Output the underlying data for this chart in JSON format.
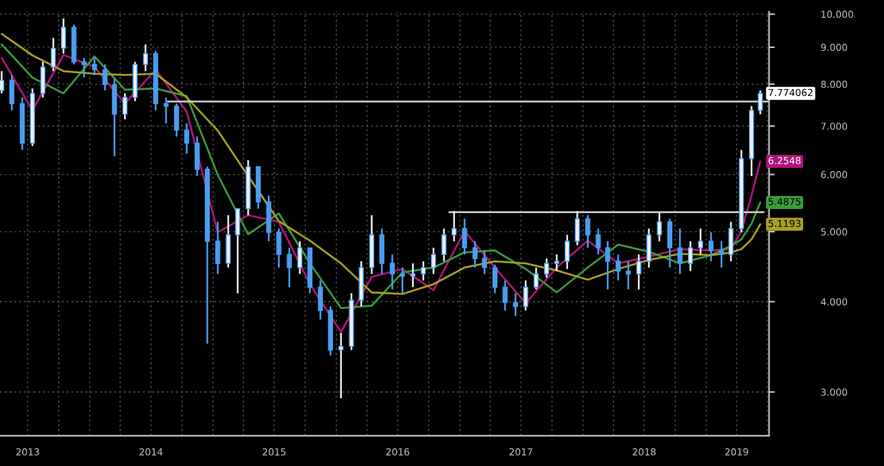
{
  "chart_data": {
    "type": "candlestick",
    "log": "y",
    "grid": true,
    "tick_labels": "xy",
    "xlim": [
      "2013-04-10",
      "2019-07-06"
    ],
    "ylim": [
      2.61,
      10.08
    ],
    "yticks": [
      {
        "value": 3,
        "label": "3.000"
      },
      {
        "value": 4,
        "label": "4.000"
      },
      {
        "value": 5,
        "label": "5.000"
      },
      {
        "value": 6,
        "label": "6.000"
      },
      {
        "value": 7,
        "label": "7.000"
      },
      {
        "value": 8,
        "label": "8.000"
      },
      {
        "value": 9,
        "label": "9.000"
      },
      {
        "value": 10,
        "label": "10.000"
      }
    ],
    "xticks": [
      {
        "value": "2013-07-01",
        "label": "2013"
      },
      {
        "value": "2013-10-01",
        "label": null
      },
      {
        "value": "2014-01-01",
        "label": null
      },
      {
        "value": "2014-04-01",
        "label": null
      },
      {
        "value": "2014-07-01",
        "label": "2014"
      },
      {
        "value": "2014-10-01",
        "label": null
      },
      {
        "value": "2015-01-01",
        "label": null
      },
      {
        "value": "2015-04-01",
        "label": null
      },
      {
        "value": "2015-07-01",
        "label": "2015"
      },
      {
        "value": "2015-10-01",
        "label": null
      },
      {
        "value": "2016-01-01",
        "label": null
      },
      {
        "value": "2016-04-01",
        "label": null
      },
      {
        "value": "2016-07-01",
        "label": "2016"
      },
      {
        "value": "2016-10-01",
        "label": null
      },
      {
        "value": "2017-01-01",
        "label": null
      },
      {
        "value": "2017-04-01",
        "label": null
      },
      {
        "value": "2017-07-01",
        "label": "2017"
      },
      {
        "value": "2017-10-01",
        "label": null
      },
      {
        "value": "2018-01-01",
        "label": null
      },
      {
        "value": "2018-04-01",
        "label": null
      },
      {
        "value": "2018-07-01",
        "label": "2018"
      },
      {
        "value": "2018-10-01",
        "label": null
      },
      {
        "value": "2019-01-01",
        "label": null
      },
      {
        "value": "2019-04-01",
        "label": "2019"
      },
      {
        "value": "2019-07-01",
        "label": null
      }
    ],
    "series": [
      {
        "type": "candlestick",
        "color": "#4a9ef0",
        "x": [
          "2013-04-15",
          "2013-05-15",
          "2013-06-15",
          "2013-07-15",
          "2013-08-15",
          "2013-09-15",
          "2013-10-15",
          "2013-11-15",
          "2013-12-15",
          "2014-01-15",
          "2014-02-15",
          "2014-03-15",
          "2014-04-15",
          "2014-05-15",
          "2014-06-15",
          "2014-07-15",
          "2014-08-15",
          "2014-09-15",
          "2014-10-15",
          "2014-11-15",
          "2014-12-15",
          "2015-01-15",
          "2015-02-15",
          "2015-03-15",
          "2015-04-15",
          "2015-05-15",
          "2015-06-15",
          "2015-07-15",
          "2015-08-15",
          "2015-09-15",
          "2015-10-15",
          "2015-11-15",
          "2015-12-15",
          "2016-01-15",
          "2016-02-15",
          "2016-03-15",
          "2016-04-15",
          "2016-05-15",
          "2016-06-15",
          "2016-07-15",
          "2016-08-15",
          "2016-09-15",
          "2016-10-15",
          "2016-11-15",
          "2016-12-15",
          "2017-01-15",
          "2017-02-15",
          "2017-03-15",
          "2017-04-15",
          "2017-05-15",
          "2017-06-15",
          "2017-07-15",
          "2017-08-15",
          "2017-09-15",
          "2017-10-15",
          "2017-11-15",
          "2017-12-15",
          "2018-01-15",
          "2018-02-15",
          "2018-03-15",
          "2018-04-15",
          "2018-05-15",
          "2018-06-15",
          "2018-07-15",
          "2018-08-15",
          "2018-09-15",
          "2018-10-15",
          "2018-11-15",
          "2018-12-15",
          "2019-01-15",
          "2019-02-15",
          "2019-03-15",
          "2019-04-15",
          "2019-05-15",
          "2019-06-10"
        ],
        "ohlc": [
          [
            7.84,
            8.34,
            7.77,
            8.1
          ],
          [
            8.1,
            8.23,
            7.36,
            7.52
          ],
          [
            7.52,
            7.67,
            6.49,
            6.63
          ],
          [
            6.63,
            7.89,
            6.57,
            7.77
          ],
          [
            7.77,
            8.59,
            7.67,
            8.45
          ],
          [
            8.45,
            9.27,
            8.34,
            8.97
          ],
          [
            8.97,
            9.86,
            8.82,
            9.59
          ],
          [
            9.59,
            9.67,
            8.52,
            8.59
          ],
          [
            8.59,
            8.7,
            8.17,
            8.52
          ],
          [
            8.52,
            8.7,
            8.23,
            8.38
          ],
          [
            8.38,
            8.52,
            7.84,
            7.99
          ],
          [
            7.99,
            8.17,
            6.36,
            7.27
          ],
          [
            7.27,
            7.77,
            7.15,
            7.67
          ],
          [
            7.67,
            8.59,
            7.58,
            8.52
          ],
          [
            8.52,
            9.08,
            8.34,
            8.82
          ],
          [
            8.82,
            8.89,
            7.36,
            7.52
          ],
          [
            7.52,
            7.67,
            7.06,
            7.46
          ],
          [
            7.46,
            7.52,
            6.77,
            6.91
          ],
          [
            6.91,
            7.06,
            6.41,
            6.63
          ],
          [
            6.63,
            6.77,
            5.97,
            6.1
          ],
          [
            6.1,
            6.15,
            3.5,
            4.85
          ],
          [
            4.85,
            5.16,
            4.37,
            4.52
          ],
          [
            4.52,
            5.27,
            4.46,
            4.95
          ],
          [
            4.95,
            5.38,
            4.11,
            5.38
          ],
          [
            5.38,
            6.28,
            5.27,
            6.15
          ],
          [
            6.15,
            6.15,
            5.38,
            5.5
          ],
          [
            5.5,
            5.61,
            4.85,
            4.99
          ],
          [
            4.99,
            5.05,
            4.46,
            4.65
          ],
          [
            4.65,
            4.75,
            4.19,
            4.46
          ],
          [
            4.46,
            4.85,
            4.37,
            4.75
          ],
          [
            4.75,
            4.75,
            4.11,
            4.19
          ],
          [
            4.19,
            4.28,
            3.78,
            3.89
          ],
          [
            3.89,
            3.94,
            3.37,
            3.43
          ],
          [
            3.43,
            3.62,
            2.94,
            3.47
          ],
          [
            3.47,
            4.11,
            3.43,
            4.02
          ],
          [
            4.02,
            4.55,
            3.94,
            4.46
          ],
          [
            4.46,
            5.27,
            4.37,
            4.95
          ],
          [
            4.95,
            5.05,
            4.37,
            4.52
          ],
          [
            4.52,
            4.65,
            4.16,
            4.37
          ],
          [
            4.37,
            4.46,
            4.11,
            4.34
          ],
          [
            4.34,
            4.52,
            4.19,
            4.37
          ],
          [
            4.37,
            4.55,
            4.28,
            4.46
          ],
          [
            4.46,
            4.75,
            4.37,
            4.65
          ],
          [
            4.65,
            5.05,
            4.55,
            4.95
          ],
          [
            4.95,
            5.34,
            4.85,
            5.05
          ],
          [
            5.05,
            5.21,
            4.65,
            4.75
          ],
          [
            4.75,
            4.85,
            4.46,
            4.59
          ],
          [
            4.59,
            4.71,
            4.37,
            4.46
          ],
          [
            4.46,
            4.5,
            4.11,
            4.19
          ],
          [
            4.19,
            4.28,
            3.89,
            3.99
          ],
          [
            3.99,
            4.11,
            3.82,
            3.94
          ],
          [
            3.94,
            4.28,
            3.89,
            4.19
          ],
          [
            4.19,
            4.46,
            4.16,
            4.37
          ],
          [
            4.37,
            4.59,
            4.32,
            4.52
          ],
          [
            4.52,
            4.65,
            4.41,
            4.55
          ],
          [
            4.55,
            4.95,
            4.44,
            4.85
          ],
          [
            4.85,
            5.34,
            4.79,
            5.21
          ],
          [
            5.21,
            5.27,
            4.75,
            4.95
          ],
          [
            4.95,
            5.05,
            4.65,
            4.75
          ],
          [
            4.75,
            4.85,
            4.16,
            4.55
          ],
          [
            4.55,
            4.65,
            4.28,
            4.41
          ],
          [
            4.41,
            4.55,
            4.16,
            4.37
          ],
          [
            4.37,
            4.65,
            4.16,
            4.55
          ],
          [
            4.55,
            5.05,
            4.46,
            4.95
          ],
          [
            4.95,
            5.32,
            4.85,
            5.16
          ],
          [
            5.16,
            5.21,
            4.46,
            4.75
          ],
          [
            4.75,
            5.05,
            4.37,
            4.52
          ],
          [
            4.52,
            4.85,
            4.41,
            4.75
          ],
          [
            4.75,
            5.05,
            4.65,
            4.85
          ],
          [
            4.85,
            4.99,
            4.55,
            4.71
          ],
          [
            4.71,
            4.85,
            4.46,
            4.65
          ],
          [
            4.65,
            5.16,
            4.55,
            5.05
          ],
          [
            5.05,
            6.49,
            4.99,
            6.31
          ],
          [
            6.31,
            7.46,
            5.97,
            7.36
          ],
          [
            7.36,
            7.84,
            7.27,
            7.77
          ]
        ]
      },
      {
        "type": "line",
        "color": "#b0157a",
        "x": [
          "2013-04-15",
          "2013-07-15",
          "2013-10-15",
          "2014-01-15",
          "2014-04-15",
          "2014-07-15",
          "2014-10-15",
          "2015-01-15",
          "2015-04-15",
          "2015-07-15",
          "2015-10-15",
          "2016-01-15",
          "2016-04-15",
          "2016-07-15",
          "2016-10-15",
          "2017-01-15",
          "2017-04-15",
          "2017-07-15",
          "2017-10-15",
          "2018-01-15",
          "2018-04-15",
          "2018-07-15",
          "2018-10-15",
          "2019-01-15",
          "2019-03-15",
          "2019-04-15",
          "2019-05-15",
          "2019-06-10"
        ],
        "values": [
          8.7,
          7.36,
          8.78,
          8.45,
          7.52,
          8.38,
          7.33,
          4.99,
          5.27,
          5.16,
          4.23,
          3.63,
          4.33,
          4.44,
          4.15,
          5.01,
          4.46,
          3.98,
          4.46,
          4.86,
          4.52,
          4.62,
          4.73,
          4.71,
          4.73,
          5.01,
          5.61,
          6.2548
        ]
      },
      {
        "type": "line",
        "color": "#3c9a3c",
        "x": [
          "2013-04-15",
          "2013-07-15",
          "2013-10-15",
          "2014-01-15",
          "2014-04-15",
          "2014-07-15",
          "2014-10-15",
          "2015-01-15",
          "2015-04-15",
          "2015-07-15",
          "2015-10-15",
          "2016-01-15",
          "2016-04-15",
          "2016-07-15",
          "2016-10-15",
          "2017-01-15",
          "2017-04-15",
          "2017-07-15",
          "2017-10-15",
          "2018-01-15",
          "2018-04-15",
          "2018-07-15",
          "2018-10-15",
          "2019-01-15",
          "2019-03-15",
          "2019-04-15",
          "2019-05-15",
          "2019-06-10"
        ],
        "values": [
          9.08,
          8.17,
          7.77,
          8.74,
          7.86,
          7.89,
          7.7,
          5.99,
          4.96,
          5.3,
          4.52,
          3.92,
          3.95,
          4.39,
          4.46,
          4.68,
          4.71,
          4.44,
          4.12,
          4.46,
          4.8,
          4.69,
          4.52,
          4.64,
          4.78,
          4.88,
          5.13,
          5.4875
        ]
      },
      {
        "type": "line",
        "color": "#a8a020",
        "x": [
          "2013-04-15",
          "2013-07-15",
          "2013-10-15",
          "2014-01-15",
          "2014-04-15",
          "2014-07-15",
          "2014-10-15",
          "2015-01-15",
          "2015-04-15",
          "2015-07-15",
          "2015-10-15",
          "2016-01-15",
          "2016-04-15",
          "2016-07-15",
          "2016-10-15",
          "2017-01-15",
          "2017-04-15",
          "2017-07-15",
          "2017-10-15",
          "2018-01-15",
          "2018-04-15",
          "2018-07-15",
          "2018-10-15",
          "2019-01-15",
          "2019-03-15",
          "2019-04-15",
          "2019-05-15",
          "2019-06-10"
        ],
        "values": [
          9.39,
          8.77,
          8.34,
          8.27,
          8.24,
          8.27,
          7.67,
          6.9,
          5.97,
          5.17,
          4.86,
          4.52,
          4.12,
          4.1,
          4.23,
          4.46,
          4.55,
          4.52,
          4.42,
          4.29,
          4.44,
          4.57,
          4.66,
          4.64,
          4.68,
          4.73,
          4.88,
          5.1193
        ]
      },
      {
        "type": "line",
        "color": "#c8c8c8",
        "x": [
          "2014-08-20",
          "2019-07-06"
        ],
        "values": [
          7.57,
          7.57
        ]
      },
      {
        "type": "line",
        "color": "#c8c8c8",
        "x": [
          "2016-12-01",
          "2019-06-20"
        ],
        "values": [
          5.32,
          5.32
        ]
      }
    ],
    "annotations": [
      {
        "text": "7.774062",
        "x": "2019-06-10",
        "y": 7.77
      },
      {
        "text": "6.2548",
        "x": "2019-06-10",
        "y": 6.2548
      },
      {
        "text": "5.4875",
        "x": "2019-06-10",
        "y": 5.4875
      },
      {
        "text": "5.1193",
        "x": "2019-06-10",
        "y": 5.1193
      }
    ]
  }
}
